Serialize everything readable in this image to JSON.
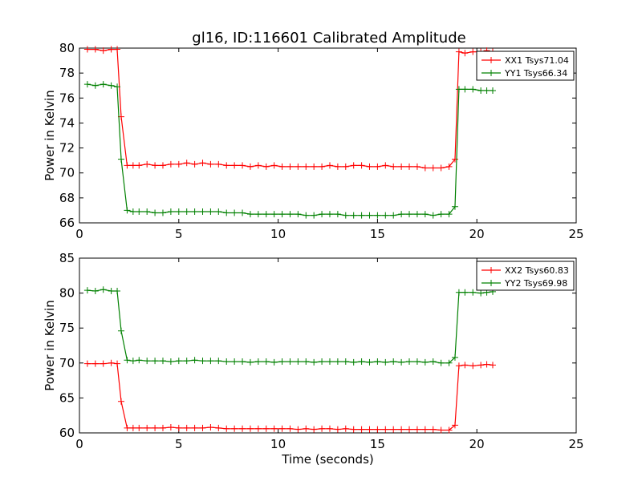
{
  "figure_title": "gl16, ID:116601 Calibrated Amplitude",
  "colors": {
    "xx": "#ff0000",
    "yy": "#008000"
  },
  "chart_data": [
    {
      "type": "line",
      "xlabel": "",
      "ylabel": "Power in Kelvin",
      "xlim": [
        0,
        25
      ],
      "ylim": [
        66,
        80
      ],
      "xticks": [
        0,
        5,
        10,
        15,
        20,
        25
      ],
      "yticks": [
        66,
        68,
        70,
        72,
        74,
        76,
        78,
        80
      ],
      "grid": false,
      "legend_position": "top-right",
      "x": [
        0.4,
        0.8,
        1.2,
        1.6,
        1.9,
        2.1,
        2.4,
        2.7,
        3.0,
        3.4,
        3.8,
        4.2,
        4.6,
        5.0,
        5.4,
        5.8,
        6.2,
        6.6,
        7.0,
        7.4,
        7.8,
        8.2,
        8.6,
        9.0,
        9.4,
        9.8,
        10.2,
        10.6,
        11.0,
        11.4,
        11.8,
        12.2,
        12.6,
        13.0,
        13.4,
        13.8,
        14.2,
        14.6,
        15.0,
        15.4,
        15.8,
        16.2,
        16.6,
        17.0,
        17.4,
        17.8,
        18.2,
        18.6,
        18.9,
        19.1,
        19.4,
        19.8,
        20.2,
        20.5,
        20.8
      ],
      "series": [
        {
          "name": "XX1 Tsys71.04",
          "color": "#ff0000",
          "values": [
            79.9,
            79.9,
            79.8,
            79.9,
            79.9,
            74.5,
            70.6,
            70.6,
            70.6,
            70.7,
            70.6,
            70.6,
            70.7,
            70.7,
            70.8,
            70.7,
            70.8,
            70.7,
            70.7,
            70.6,
            70.6,
            70.6,
            70.5,
            70.6,
            70.5,
            70.6,
            70.5,
            70.5,
            70.5,
            70.5,
            70.5,
            70.5,
            70.6,
            70.5,
            70.5,
            70.6,
            70.6,
            70.5,
            70.5,
            70.6,
            70.5,
            70.5,
            70.5,
            70.5,
            70.4,
            70.4,
            70.4,
            70.5,
            71.1,
            79.7,
            79.6,
            79.7,
            79.7,
            79.8,
            79.7
          ]
        },
        {
          "name": "YY1 Tsys66.34",
          "color": "#008000",
          "values": [
            77.1,
            77.0,
            77.1,
            77.0,
            76.9,
            71.1,
            67.0,
            66.9,
            66.9,
            66.9,
            66.8,
            66.8,
            66.9,
            66.9,
            66.9,
            66.9,
            66.9,
            66.9,
            66.9,
            66.8,
            66.8,
            66.8,
            66.7,
            66.7,
            66.7,
            66.7,
            66.7,
            66.7,
            66.7,
            66.6,
            66.6,
            66.7,
            66.7,
            66.7,
            66.6,
            66.6,
            66.6,
            66.6,
            66.6,
            66.6,
            66.6,
            66.7,
            66.7,
            66.7,
            66.7,
            66.6,
            66.7,
            66.7,
            67.3,
            76.7,
            76.7,
            76.7,
            76.6,
            76.6,
            76.6
          ]
        }
      ]
    },
    {
      "type": "line",
      "xlabel": "Time (seconds)",
      "ylabel": "Power in Kelvin",
      "xlim": [
        0,
        25
      ],
      "ylim": [
        60,
        85
      ],
      "xticks": [
        0,
        5,
        10,
        15,
        20,
        25
      ],
      "yticks": [
        60,
        65,
        70,
        75,
        80,
        85
      ],
      "grid": false,
      "legend_position": "top-right",
      "x": [
        0.4,
        0.8,
        1.2,
        1.6,
        1.9,
        2.1,
        2.4,
        2.7,
        3.0,
        3.4,
        3.8,
        4.2,
        4.6,
        5.0,
        5.4,
        5.8,
        6.2,
        6.6,
        7.0,
        7.4,
        7.8,
        8.2,
        8.6,
        9.0,
        9.4,
        9.8,
        10.2,
        10.6,
        11.0,
        11.4,
        11.8,
        12.2,
        12.6,
        13.0,
        13.4,
        13.8,
        14.2,
        14.6,
        15.0,
        15.4,
        15.8,
        16.2,
        16.6,
        17.0,
        17.4,
        17.8,
        18.2,
        18.6,
        18.9,
        19.1,
        19.4,
        19.8,
        20.2,
        20.5,
        20.8
      ],
      "series": [
        {
          "name": "XX2 Tsys60.83",
          "color": "#ff0000",
          "values": [
            69.9,
            69.9,
            69.9,
            70.0,
            69.9,
            64.5,
            60.7,
            60.7,
            60.7,
            60.7,
            60.7,
            60.7,
            60.8,
            60.7,
            60.7,
            60.7,
            60.7,
            60.8,
            60.7,
            60.6,
            60.6,
            60.6,
            60.6,
            60.6,
            60.6,
            60.6,
            60.6,
            60.6,
            60.5,
            60.6,
            60.5,
            60.6,
            60.6,
            60.5,
            60.6,
            60.5,
            60.5,
            60.5,
            60.5,
            60.5,
            60.5,
            60.5,
            60.5,
            60.5,
            60.5,
            60.5,
            60.4,
            60.4,
            61.1,
            69.6,
            69.7,
            69.6,
            69.7,
            69.8,
            69.7
          ]
        },
        {
          "name": "YY2 Tsys69.98",
          "color": "#008000",
          "values": [
            80.4,
            80.3,
            80.5,
            80.3,
            80.3,
            74.6,
            70.4,
            70.3,
            70.4,
            70.3,
            70.3,
            70.3,
            70.2,
            70.3,
            70.3,
            70.4,
            70.3,
            70.3,
            70.3,
            70.2,
            70.2,
            70.2,
            70.1,
            70.2,
            70.2,
            70.1,
            70.2,
            70.2,
            70.2,
            70.2,
            70.1,
            70.2,
            70.2,
            70.2,
            70.2,
            70.1,
            70.2,
            70.1,
            70.2,
            70.1,
            70.2,
            70.1,
            70.2,
            70.2,
            70.1,
            70.2,
            70.0,
            70.0,
            70.8,
            80.1,
            80.1,
            80.1,
            80.0,
            80.1,
            80.2
          ]
        }
      ]
    }
  ]
}
